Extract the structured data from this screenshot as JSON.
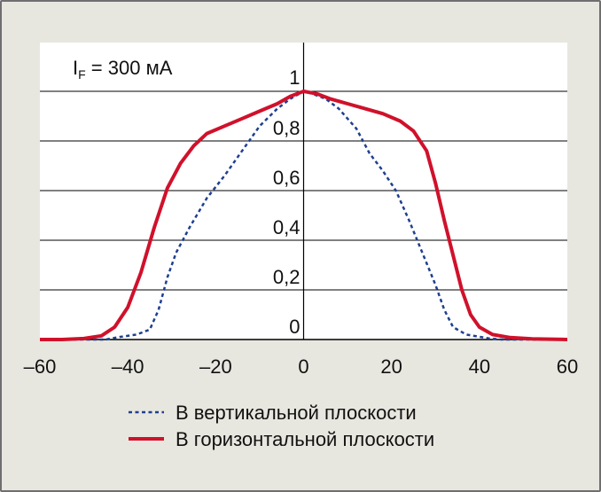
{
  "chart_data": {
    "type": "line",
    "title": "",
    "xlabel": "",
    "ylabel": "",
    "xlim": [
      -60,
      60
    ],
    "ylim": [
      0,
      1
    ],
    "x_ticks": [
      "–60",
      "–40",
      "–20",
      "0",
      "20",
      "40",
      "60"
    ],
    "y_ticks": [
      "0",
      "0,2",
      "0,4",
      "0,6",
      "0,8",
      "1"
    ],
    "annotation": {
      "main": "I",
      "sub": "F",
      "rest": " = 300 мА"
    },
    "grid": "horizontal",
    "legend_position": "bottom",
    "series": [
      {
        "name": "В вертикальной плоскости",
        "color": "#1f3f8f",
        "style": "dotted",
        "points": [
          [
            -60,
            0
          ],
          [
            -50,
            0
          ],
          [
            -45,
            0
          ],
          [
            -42,
            0.01
          ],
          [
            -38,
            0.02
          ],
          [
            -35,
            0.04
          ],
          [
            -33,
            0.12
          ],
          [
            -31,
            0.25
          ],
          [
            -29,
            0.35
          ],
          [
            -26,
            0.45
          ],
          [
            -22,
            0.57
          ],
          [
            -18,
            0.66
          ],
          [
            -14,
            0.76
          ],
          [
            -10,
            0.86
          ],
          [
            -6,
            0.93
          ],
          [
            -3,
            0.97
          ],
          [
            -1,
            0.99
          ],
          [
            0,
            1.0
          ],
          [
            2,
            0.99
          ],
          [
            5,
            0.97
          ],
          [
            8,
            0.93
          ],
          [
            12,
            0.85
          ],
          [
            15,
            0.75
          ],
          [
            18,
            0.68
          ],
          [
            21,
            0.6
          ],
          [
            24,
            0.48
          ],
          [
            27,
            0.35
          ],
          [
            30,
            0.22
          ],
          [
            32,
            0.12
          ],
          [
            34,
            0.05
          ],
          [
            37,
            0.02
          ],
          [
            42,
            0.005
          ],
          [
            45,
            0
          ],
          [
            60,
            0
          ]
        ]
      },
      {
        "name": "В горизонтальной плоскости",
        "color": "#d0112b",
        "style": "solid",
        "points": [
          [
            -60,
            0
          ],
          [
            -55,
            0
          ],
          [
            -50,
            0.004
          ],
          [
            -46,
            0.015
          ],
          [
            -43,
            0.05
          ],
          [
            -40,
            0.13
          ],
          [
            -37,
            0.27
          ],
          [
            -34,
            0.45
          ],
          [
            -31,
            0.61
          ],
          [
            -28,
            0.71
          ],
          [
            -25,
            0.78
          ],
          [
            -22,
            0.83
          ],
          [
            -18,
            0.86
          ],
          [
            -14,
            0.89
          ],
          [
            -10,
            0.92
          ],
          [
            -6,
            0.95
          ],
          [
            -3,
            0.98
          ],
          [
            0,
            1.0
          ],
          [
            3,
            0.99
          ],
          [
            6,
            0.97
          ],
          [
            10,
            0.95
          ],
          [
            14,
            0.93
          ],
          [
            18,
            0.91
          ],
          [
            22,
            0.88
          ],
          [
            25,
            0.84
          ],
          [
            28,
            0.76
          ],
          [
            30,
            0.63
          ],
          [
            32,
            0.48
          ],
          [
            34,
            0.34
          ],
          [
            36,
            0.2
          ],
          [
            38,
            0.1
          ],
          [
            40,
            0.05
          ],
          [
            43,
            0.02
          ],
          [
            47,
            0.008
          ],
          [
            52,
            0.003
          ],
          [
            60,
            0
          ]
        ]
      }
    ]
  }
}
